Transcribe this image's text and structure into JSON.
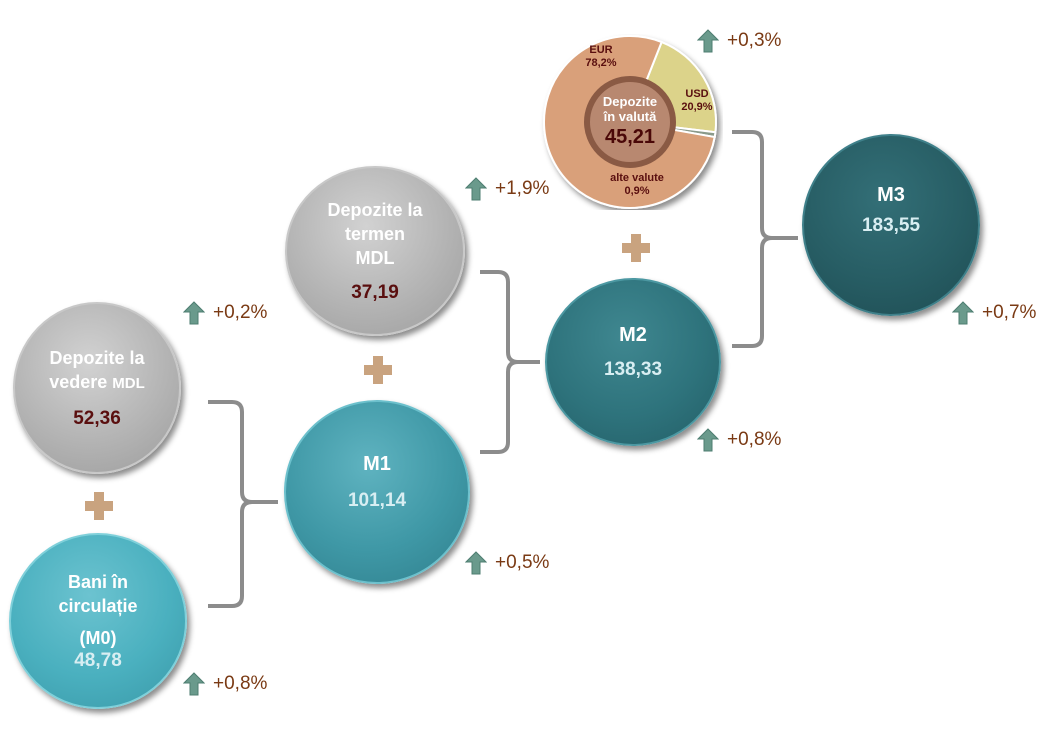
{
  "nodes": {
    "depozite_vedere": {
      "label_line1": "Depozite la",
      "label_line2a": "vedere",
      "label_line2b": "MDL",
      "value": "52,36"
    },
    "bani_circulatie": {
      "label_line1": "Bani în",
      "label_line2": "circulație",
      "label_line3": "(M0)",
      "value": "48,78"
    },
    "depozite_termen": {
      "label_line1": "Depozite la",
      "label_line2": "termen",
      "label_line3": "MDL",
      "value": "37,19"
    },
    "m1": {
      "label": "M1",
      "value": "101,14"
    },
    "m2": {
      "label": "M2",
      "value": "138,33"
    },
    "m3": {
      "label": "M3",
      "value": "183,55"
    },
    "depozite_valuta": {
      "label_line1": "Depozite",
      "label_line2": "în valută",
      "value": "45,21"
    }
  },
  "changes": {
    "depozite_vedere": "+0,2%",
    "bani_circulatie": "+0,8%",
    "depozite_termen": "+1,9%",
    "m1": "+0,5%",
    "m2": "+0,8%",
    "m3": "+0,7%",
    "depozite_valuta": "+0,3%"
  },
  "chart_data": {
    "type": "pie",
    "categories": [
      "EUR",
      "USD",
      "alte valute"
    ],
    "values": [
      78.2,
      20.9,
      0.9
    ],
    "labels": [
      "78,2%",
      "20,9%",
      "0,9%"
    ],
    "colors": [
      "#d9a07a",
      "#dcd38a",
      "#8a9a8a"
    ]
  },
  "colors": {
    "arrow": "#6a9a8c",
    "plus": "#c9a37f",
    "bracket": "#8c8c8c",
    "change_text": "#7a3a14"
  }
}
